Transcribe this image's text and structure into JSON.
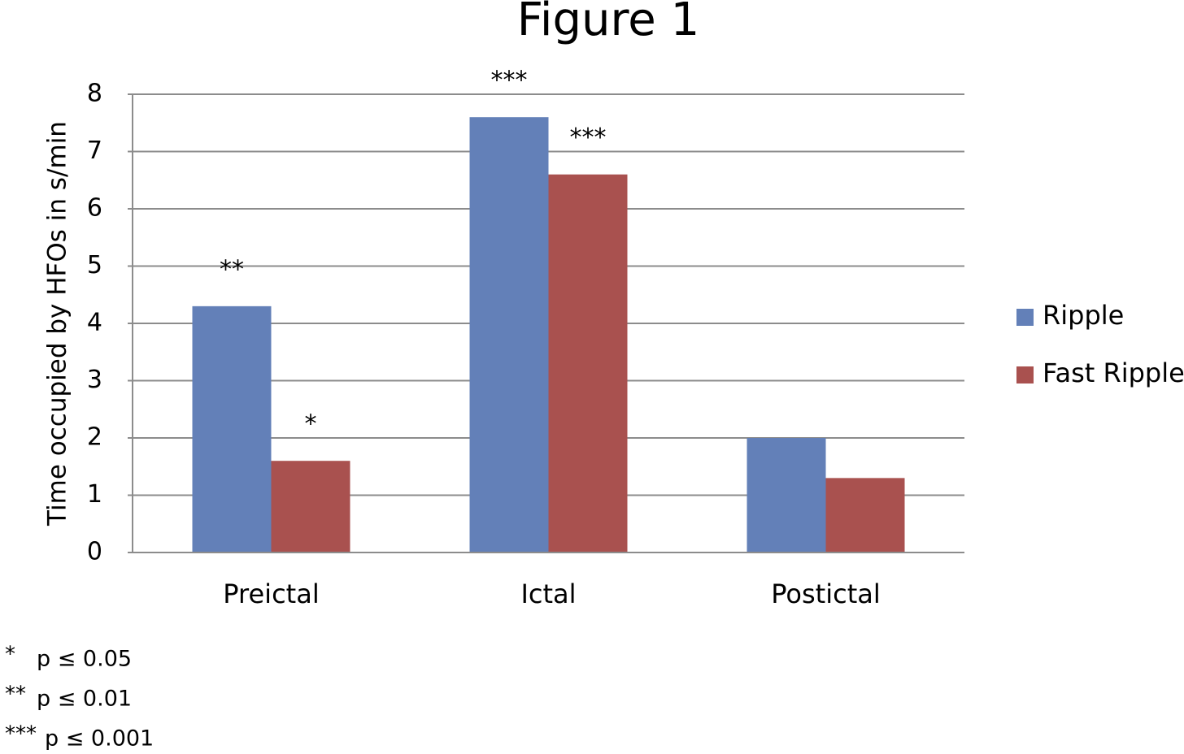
{
  "chart_data": {
    "type": "bar",
    "title": "Figure 1",
    "y_label": "Time occupied by HFOs in s/min",
    "categories": [
      "Preictal",
      "Ictal",
      "Postictal"
    ],
    "series": [
      {
        "name": "Ripple",
        "color": "#6380b8",
        "values": [
          4.3,
          7.6,
          2.0
        ],
        "annotations": [
          "**",
          "***",
          null
        ]
      },
      {
        "name": "Fast Ripple",
        "color": "#a9514f",
        "values": [
          1.6,
          6.6,
          1.3
        ],
        "annotations": [
          "*",
          "***",
          null
        ]
      }
    ],
    "ylim": [
      0,
      8
    ],
    "yticks": [
      0,
      1,
      2,
      3,
      4,
      5,
      6,
      7,
      8
    ],
    "grid": true,
    "legend": "right",
    "notes": [
      {
        "symbol": "*",
        "text": "p ≤ 0.05"
      },
      {
        "symbol": "**",
        "text": "p ≤ 0.01"
      },
      {
        "symbol": "***",
        "text": "p ≤ 0.001"
      }
    ]
  }
}
